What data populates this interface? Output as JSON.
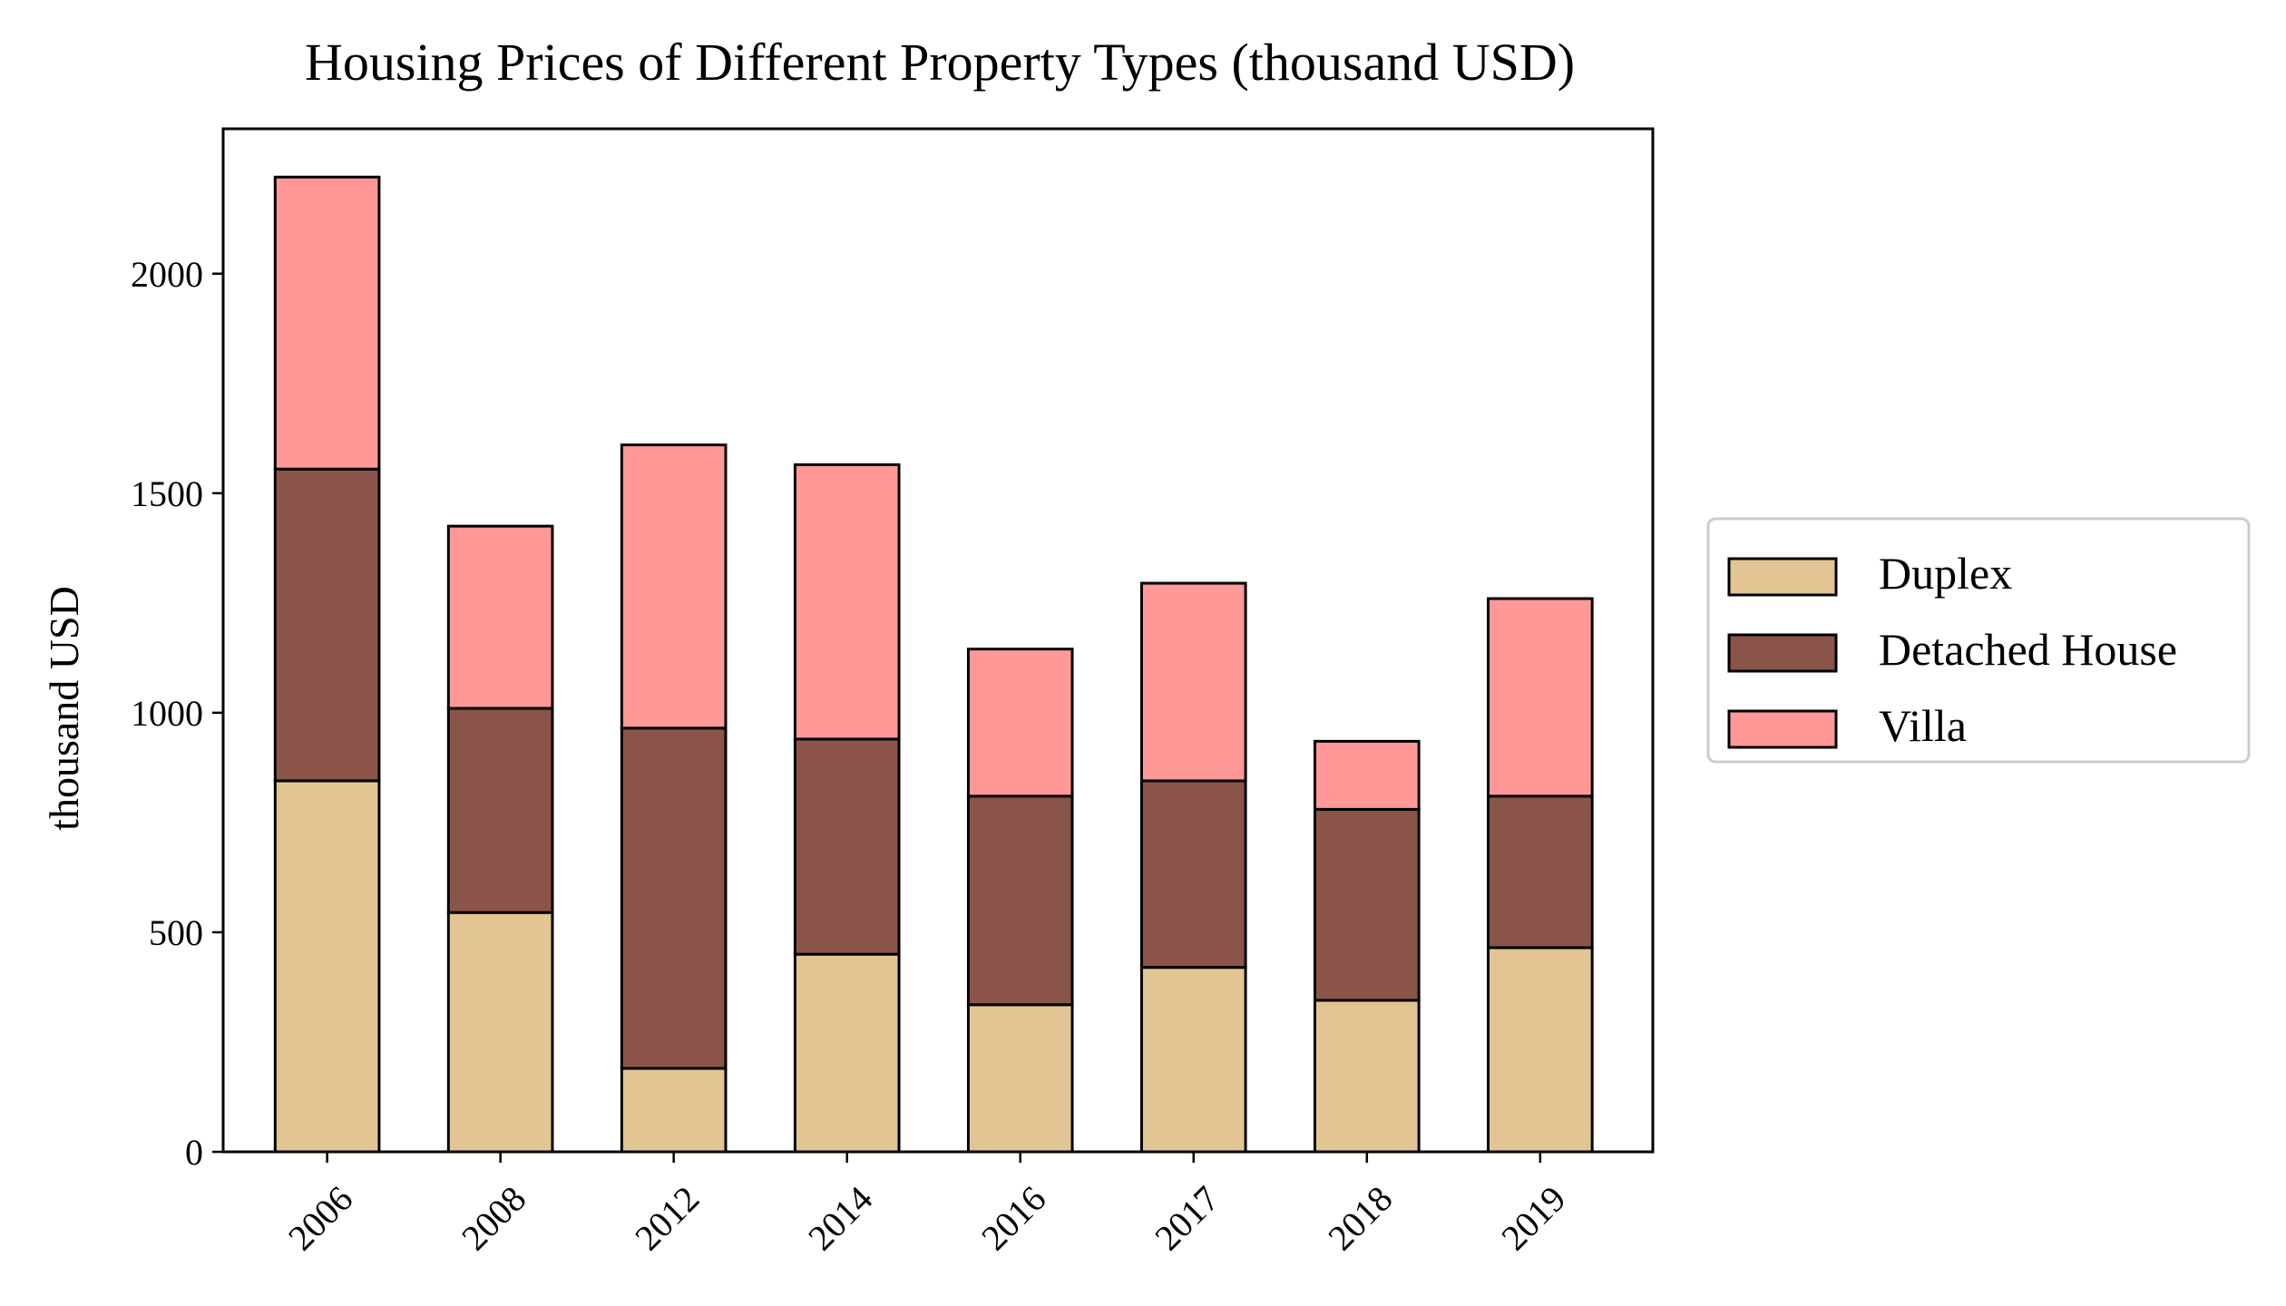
{
  "chart_data": {
    "type": "bar",
    "stacked": true,
    "title": "Housing Prices of Different Property Types (thousand USD)",
    "xlabel": "",
    "ylabel": "thousand USD",
    "categories": [
      "2006",
      "2008",
      "2012",
      "2014",
      "2016",
      "2017",
      "2018",
      "2019"
    ],
    "ylim": [
      0,
      2330
    ],
    "yticks": [
      0,
      500,
      1000,
      1500,
      2000
    ],
    "grid": false,
    "legend_position": "right-center",
    "series": [
      {
        "name": "Duplex",
        "color": "#e3c594",
        "values": [
          845,
          545,
          190,
          450,
          335,
          420,
          345,
          465
        ]
      },
      {
        "name": "Detached House",
        "color": "#8b5449",
        "values": [
          710,
          465,
          775,
          490,
          475,
          425,
          435,
          345
        ]
      },
      {
        "name": "Villa",
        "color": "#ff9896",
        "values": [
          665,
          415,
          645,
          625,
          335,
          450,
          155,
          450
        ]
      }
    ]
  }
}
